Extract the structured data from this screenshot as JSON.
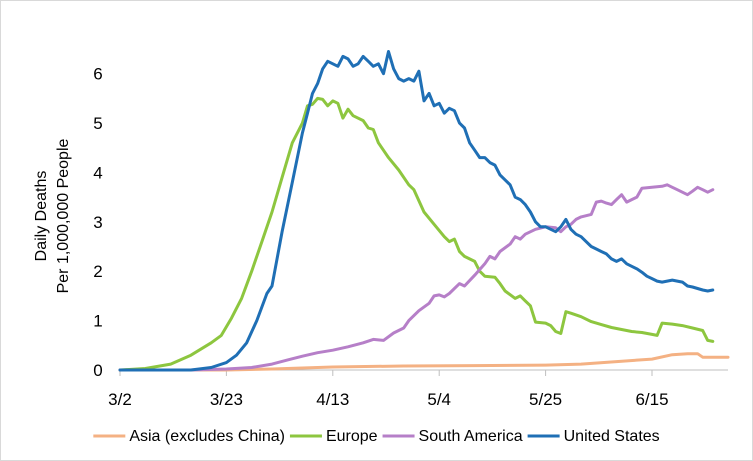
{
  "chart_data": {
    "type": "line",
    "title": "",
    "xlabel": "",
    "ylabel": [
      "Daily Deaths",
      "Per 1,000,000 People"
    ],
    "x_tick_labels": [
      "3/2",
      "3/23",
      "4/13",
      "5/4",
      "5/25",
      "6/15"
    ],
    "x_tick_days": [
      0,
      21,
      42,
      63,
      84,
      105
    ],
    "x_range_days": [
      0,
      120
    ],
    "ylim": [
      0,
      6.5
    ],
    "y_ticks": [
      0,
      1,
      2,
      3,
      4,
      5,
      6
    ],
    "grid": false,
    "legend_position": "bottom",
    "series": [
      {
        "name": "Asia (excludes China)",
        "color": "#F4B183",
        "points": [
          [
            0,
            0
          ],
          [
            21,
            0
          ],
          [
            30,
            0.02
          ],
          [
            42,
            0.06
          ],
          [
            56,
            0.08
          ],
          [
            70,
            0.09
          ],
          [
            84,
            0.1
          ],
          [
            91,
            0.12
          ],
          [
            98,
            0.17
          ],
          [
            105,
            0.22
          ],
          [
            109,
            0.31
          ],
          [
            112,
            0.33
          ],
          [
            114,
            0.33
          ],
          [
            115,
            0.26
          ],
          [
            120,
            0.26
          ]
        ]
      },
      {
        "name": "Europe",
        "color": "#8DC63F",
        "points": [
          [
            0,
            0
          ],
          [
            5,
            0.03
          ],
          [
            10,
            0.12
          ],
          [
            14,
            0.3
          ],
          [
            18,
            0.55
          ],
          [
            20,
            0.7
          ],
          [
            22,
            1.05
          ],
          [
            24,
            1.45
          ],
          [
            26,
            2.0
          ],
          [
            28,
            2.6
          ],
          [
            30,
            3.2
          ],
          [
            32,
            3.9
          ],
          [
            34,
            4.6
          ],
          [
            36,
            5.0
          ],
          [
            37,
            5.35
          ],
          [
            38,
            5.38
          ],
          [
            39,
            5.5
          ],
          [
            40,
            5.48
          ],
          [
            41,
            5.35
          ],
          [
            42,
            5.45
          ],
          [
            43,
            5.4
          ],
          [
            44,
            5.1
          ],
          [
            45,
            5.28
          ],
          [
            46,
            5.15
          ],
          [
            48,
            5.05
          ],
          [
            49,
            4.9
          ],
          [
            50,
            4.87
          ],
          [
            51,
            4.6
          ],
          [
            53,
            4.3
          ],
          [
            55,
            4.05
          ],
          [
            57,
            3.75
          ],
          [
            58,
            3.65
          ],
          [
            60,
            3.2
          ],
          [
            62,
            2.95
          ],
          [
            64,
            2.7
          ],
          [
            65,
            2.6
          ],
          [
            66,
            2.65
          ],
          [
            67,
            2.4
          ],
          [
            68,
            2.3
          ],
          [
            70,
            2.2
          ],
          [
            71,
            2.0
          ],
          [
            72,
            1.9
          ],
          [
            74,
            1.88
          ],
          [
            75,
            1.75
          ],
          [
            76,
            1.6
          ],
          [
            78,
            1.45
          ],
          [
            79,
            1.5
          ],
          [
            80,
            1.4
          ],
          [
            81,
            1.3
          ],
          [
            82,
            0.97
          ],
          [
            84,
            0.95
          ],
          [
            85,
            0.9
          ],
          [
            86,
            0.78
          ],
          [
            87,
            0.74
          ],
          [
            88,
            1.18
          ],
          [
            89,
            1.15
          ],
          [
            91,
            1.08
          ],
          [
            93,
            0.98
          ],
          [
            95,
            0.92
          ],
          [
            97,
            0.86
          ],
          [
            99,
            0.82
          ],
          [
            101,
            0.78
          ],
          [
            103,
            0.76
          ],
          [
            105,
            0.72
          ],
          [
            106,
            0.7
          ],
          [
            107,
            0.95
          ],
          [
            109,
            0.93
          ],
          [
            111,
            0.9
          ],
          [
            113,
            0.85
          ],
          [
            115,
            0.8
          ],
          [
            116,
            0.6
          ],
          [
            117,
            0.58
          ]
        ]
      },
      {
        "name": "South America",
        "color": "#B67FC8",
        "points": [
          [
            0,
            0
          ],
          [
            14,
            0
          ],
          [
            21,
            0.02
          ],
          [
            26,
            0.05
          ],
          [
            30,
            0.12
          ],
          [
            33,
            0.2
          ],
          [
            36,
            0.28
          ],
          [
            39,
            0.35
          ],
          [
            42,
            0.4
          ],
          [
            45,
            0.47
          ],
          [
            48,
            0.55
          ],
          [
            50,
            0.62
          ],
          [
            52,
            0.6
          ],
          [
            54,
            0.75
          ],
          [
            56,
            0.85
          ],
          [
            57,
            1.0
          ],
          [
            59,
            1.2
          ],
          [
            61,
            1.35
          ],
          [
            62,
            1.5
          ],
          [
            63,
            1.52
          ],
          [
            64,
            1.48
          ],
          [
            65,
            1.55
          ],
          [
            67,
            1.75
          ],
          [
            68,
            1.7
          ],
          [
            70,
            1.92
          ],
          [
            72,
            2.15
          ],
          [
            73,
            2.3
          ],
          [
            74,
            2.25
          ],
          [
            75,
            2.4
          ],
          [
            77,
            2.55
          ],
          [
            78,
            2.7
          ],
          [
            79,
            2.65
          ],
          [
            80,
            2.75
          ],
          [
            82,
            2.85
          ],
          [
            84,
            2.9
          ],
          [
            86,
            2.88
          ],
          [
            87,
            2.8
          ],
          [
            88,
            2.9
          ],
          [
            89,
            2.95
          ],
          [
            90,
            3.05
          ],
          [
            91,
            3.1
          ],
          [
            93,
            3.15
          ],
          [
            94,
            3.4
          ],
          [
            95,
            3.42
          ],
          [
            96,
            3.38
          ],
          [
            97,
            3.35
          ],
          [
            98,
            3.45
          ],
          [
            99,
            3.55
          ],
          [
            100,
            3.4
          ],
          [
            101,
            3.45
          ],
          [
            102,
            3.5
          ],
          [
            103,
            3.68
          ],
          [
            105,
            3.7
          ],
          [
            107,
            3.72
          ],
          [
            108,
            3.75
          ],
          [
            109,
            3.7
          ],
          [
            110,
            3.65
          ],
          [
            111,
            3.6
          ],
          [
            112,
            3.55
          ],
          [
            113,
            3.62
          ],
          [
            114,
            3.7
          ],
          [
            115,
            3.65
          ],
          [
            116,
            3.6
          ],
          [
            117,
            3.65
          ]
        ]
      },
      {
        "name": "United States",
        "color": "#1F6FB5",
        "points": [
          [
            0,
            0
          ],
          [
            14,
            0
          ],
          [
            18,
            0.05
          ],
          [
            21,
            0.15
          ],
          [
            23,
            0.3
          ],
          [
            25,
            0.55
          ],
          [
            27,
            1.0
          ],
          [
            29,
            1.55
          ],
          [
            30,
            1.7
          ],
          [
            32,
            2.8
          ],
          [
            34,
            3.8
          ],
          [
            36,
            4.8
          ],
          [
            37,
            5.2
          ],
          [
            38,
            5.6
          ],
          [
            39,
            5.8
          ],
          [
            40,
            6.1
          ],
          [
            41,
            6.25
          ],
          [
            42,
            6.2
          ],
          [
            43,
            6.15
          ],
          [
            44,
            6.35
          ],
          [
            45,
            6.3
          ],
          [
            46,
            6.15
          ],
          [
            47,
            6.2
          ],
          [
            48,
            6.35
          ],
          [
            49,
            6.25
          ],
          [
            50,
            6.15
          ],
          [
            51,
            6.2
          ],
          [
            52,
            6.0
          ],
          [
            53,
            6.45
          ],
          [
            54,
            6.1
          ],
          [
            55,
            5.9
          ],
          [
            56,
            5.85
          ],
          [
            57,
            5.9
          ],
          [
            58,
            5.85
          ],
          [
            59,
            6.05
          ],
          [
            60,
            5.45
          ],
          [
            61,
            5.6
          ],
          [
            62,
            5.35
          ],
          [
            63,
            5.4
          ],
          [
            64,
            5.2
          ],
          [
            65,
            5.3
          ],
          [
            66,
            5.25
          ],
          [
            67,
            5.0
          ],
          [
            68,
            4.9
          ],
          [
            69,
            4.6
          ],
          [
            70,
            4.45
          ],
          [
            71,
            4.3
          ],
          [
            72,
            4.3
          ],
          [
            73,
            4.2
          ],
          [
            74,
            4.15
          ],
          [
            75,
            3.95
          ],
          [
            76,
            3.85
          ],
          [
            77,
            3.75
          ],
          [
            78,
            3.5
          ],
          [
            79,
            3.45
          ],
          [
            80,
            3.35
          ],
          [
            81,
            3.2
          ],
          [
            82,
            3.0
          ],
          [
            83,
            2.9
          ],
          [
            84,
            2.9
          ],
          [
            85,
            2.85
          ],
          [
            86,
            2.8
          ],
          [
            87,
            2.9
          ],
          [
            88,
            3.05
          ],
          [
            89,
            2.85
          ],
          [
            90,
            2.75
          ],
          [
            91,
            2.7
          ],
          [
            92,
            2.6
          ],
          [
            93,
            2.5
          ],
          [
            94,
            2.45
          ],
          [
            95,
            2.4
          ],
          [
            96,
            2.35
          ],
          [
            97,
            2.25
          ],
          [
            98,
            2.2
          ],
          [
            99,
            2.25
          ],
          [
            100,
            2.15
          ],
          [
            101,
            2.1
          ],
          [
            102,
            2.05
          ],
          [
            103,
            1.98
          ],
          [
            104,
            1.9
          ],
          [
            105,
            1.85
          ],
          [
            106,
            1.8
          ],
          [
            107,
            1.78
          ],
          [
            108,
            1.8
          ],
          [
            109,
            1.82
          ],
          [
            110,
            1.8
          ],
          [
            111,
            1.78
          ],
          [
            112,
            1.7
          ],
          [
            113,
            1.68
          ],
          [
            114,
            1.65
          ],
          [
            115,
            1.62
          ],
          [
            116,
            1.6
          ],
          [
            117,
            1.62
          ]
        ]
      }
    ]
  }
}
